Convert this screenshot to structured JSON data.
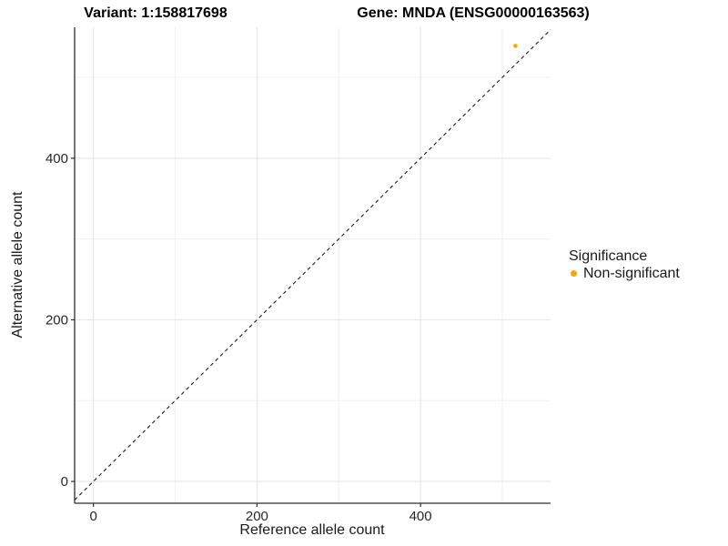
{
  "titles": {
    "left": "Variant: 1:158817698",
    "right": "Gene: MNDA (ENSG00000163563)"
  },
  "chart_data": {
    "type": "scatter",
    "xlabel": "Reference allele count",
    "ylabel": "Alternative allele count",
    "x": {
      "ticks": [
        0,
        200,
        400
      ],
      "minor_ticks": [
        100,
        300,
        500
      ],
      "range": [
        -23,
        559
      ]
    },
    "y": {
      "ticks": [
        0,
        200,
        400
      ],
      "minor_ticks": [
        100,
        300,
        500
      ],
      "range": [
        -27,
        562
      ]
    },
    "points": [
      {
        "x": 516,
        "y": 539,
        "series": "Non-significant"
      }
    ],
    "reference_line": {
      "slope": 1,
      "intercept": 0,
      "style": "dashed"
    },
    "grid": "major-and-minor",
    "legend": {
      "title": "Significance",
      "position": "right",
      "items": [
        {
          "label": "Non-significant",
          "color": "#FFA500"
        }
      ]
    }
  },
  "colors": {
    "point": "#FFA500",
    "grid_major": "#E3E3E3",
    "grid_minor": "#F1F1F1",
    "axis_line": "#2e2e2e",
    "tick_label": "#262626",
    "reference_line": "#1a1a1a"
  }
}
